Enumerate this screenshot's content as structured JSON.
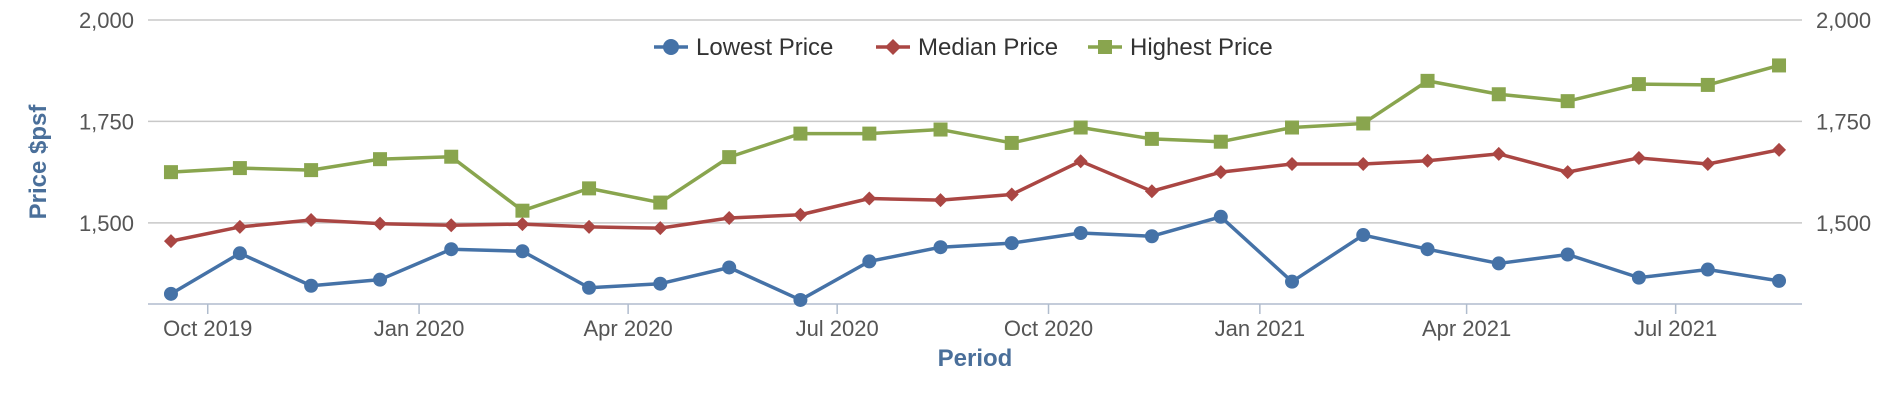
{
  "chart_data": {
    "type": "line",
    "xlabel": "Period",
    "ylabel": "Price $psf",
    "ylim": [
      1300,
      2000
    ],
    "yticks": [
      1500,
      1750,
      2000
    ],
    "ytick_labels": [
      "1,500",
      "1,750",
      "2,000"
    ],
    "xticks": [
      {
        "date": "2019-10-01",
        "label": "Oct 2019"
      },
      {
        "date": "2020-01-01",
        "label": "Jan 2020"
      },
      {
        "date": "2020-04-01",
        "label": "Apr 2020"
      },
      {
        "date": "2020-07-01",
        "label": "Jul 2020"
      },
      {
        "date": "2020-10-01",
        "label": "Oct 2020"
      },
      {
        "date": "2021-01-01",
        "label": "Jan 2021"
      },
      {
        "date": "2021-04-01",
        "label": "Apr 2021"
      },
      {
        "date": "2021-07-01",
        "label": "Jul 2021"
      }
    ],
    "grid": true,
    "legend_position": "top-center",
    "x": [
      "2019-09-15",
      "2019-10-15",
      "2019-11-15",
      "2019-12-15",
      "2020-01-15",
      "2020-02-15",
      "2020-03-15",
      "2020-04-15",
      "2020-05-15",
      "2020-06-15",
      "2020-07-15",
      "2020-08-15",
      "2020-09-15",
      "2020-10-15",
      "2020-11-15",
      "2020-12-15",
      "2021-01-15",
      "2021-02-15",
      "2021-03-15",
      "2021-04-15",
      "2021-05-15",
      "2021-06-15",
      "2021-07-15",
      "2021-08-15"
    ],
    "series": [
      {
        "name": "Lowest Price",
        "color": "#4572a7",
        "marker": "circle",
        "values": [
          1325,
          1425,
          1345,
          1360,
          1435,
          1430,
          1340,
          1350,
          1390,
          1310,
          1405,
          1440,
          1450,
          1475,
          1467,
          1515,
          1355,
          1470,
          1435,
          1400,
          1422,
          1365,
          1385,
          1357
        ]
      },
      {
        "name": "Median Price",
        "color": "#aa4643",
        "marker": "diamond",
        "values": [
          1455,
          1490,
          1507,
          1498,
          1494,
          1497,
          1490,
          1487,
          1512,
          1520,
          1560,
          1556,
          1570,
          1652,
          1578,
          1625,
          1645,
          1645,
          1653,
          1670,
          1625,
          1660,
          1645,
          1680
        ]
      },
      {
        "name": "Highest Price",
        "color": "#89a54e",
        "marker": "square",
        "values": [
          1625,
          1635,
          1630,
          1657,
          1663,
          1530,
          1585,
          1550,
          1662,
          1720,
          1720,
          1730,
          1697,
          1735,
          1707,
          1700,
          1735,
          1745,
          1850,
          1817,
          1800,
          1842,
          1840,
          1888
        ]
      }
    ]
  }
}
